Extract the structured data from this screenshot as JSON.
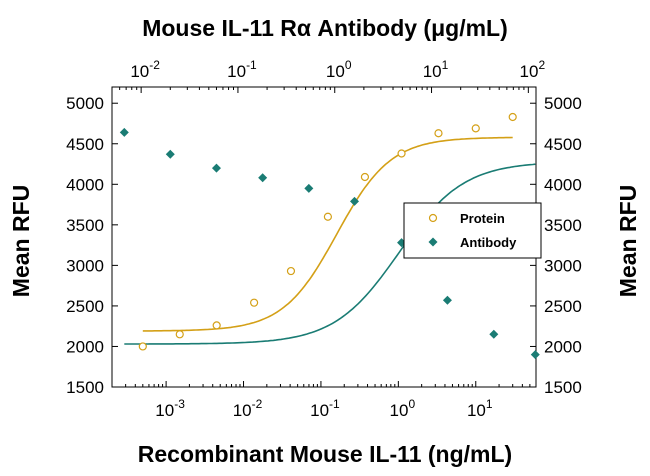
{
  "chart_data": {
    "type": "scatter",
    "title": "Mouse IL-11 Rα Antibody (μg/mL)",
    "xlabel": "Recombinant Mouse IL-11 (ng/mL)",
    "ylabel": "Mean RFU",
    "y2label": "Mean RFU",
    "x_scale": "log",
    "xlim": [
      0.0002,
      60
    ],
    "x2_scale": "log",
    "x2lim": [
      0.005,
      120
    ],
    "ylim": [
      1500,
      5200
    ],
    "y_ticks": [
      1500,
      2000,
      2500,
      3000,
      3500,
      4000,
      4500,
      5000
    ],
    "x_tick_exponents": [
      -3,
      -2,
      -1,
      0,
      1
    ],
    "x2_tick_exponents": [
      -2,
      -1,
      0,
      1,
      2
    ],
    "tick_base": "10",
    "grid": false,
    "legend_position": "center-right",
    "series": [
      {
        "name": "Protein",
        "color": "#d4a017",
        "marker": "open-circle",
        "axis": "bottom",
        "x": [
          0.0005,
          0.0015,
          0.0045,
          0.0137,
          0.041,
          0.123,
          0.37,
          1.1,
          3.3,
          10,
          30
        ],
        "y": [
          2000,
          2150,
          2260,
          2540,
          2930,
          3600,
          4090,
          4380,
          4630,
          4690,
          4830
        ],
        "fit": {
          "bottom": 2190,
          "top": 4580,
          "ec50": 0.16,
          "hill": 1.25
        }
      },
      {
        "name": "Antibody",
        "color": "#1a7c74",
        "marker": "filled-diamond",
        "axis": "top",
        "x": [
          0.0067,
          0.02,
          0.06,
          0.18,
          0.54,
          1.6,
          4.9,
          14.6,
          44,
          118
        ],
        "y": [
          4640,
          4370,
          4200,
          4080,
          3950,
          3790,
          3280,
          2570,
          2150,
          1900
        ],
        "fit": {
          "bottom": 2030,
          "top": 4280,
          "ec50": 4.6,
          "hill": 1.3
        }
      }
    ]
  }
}
